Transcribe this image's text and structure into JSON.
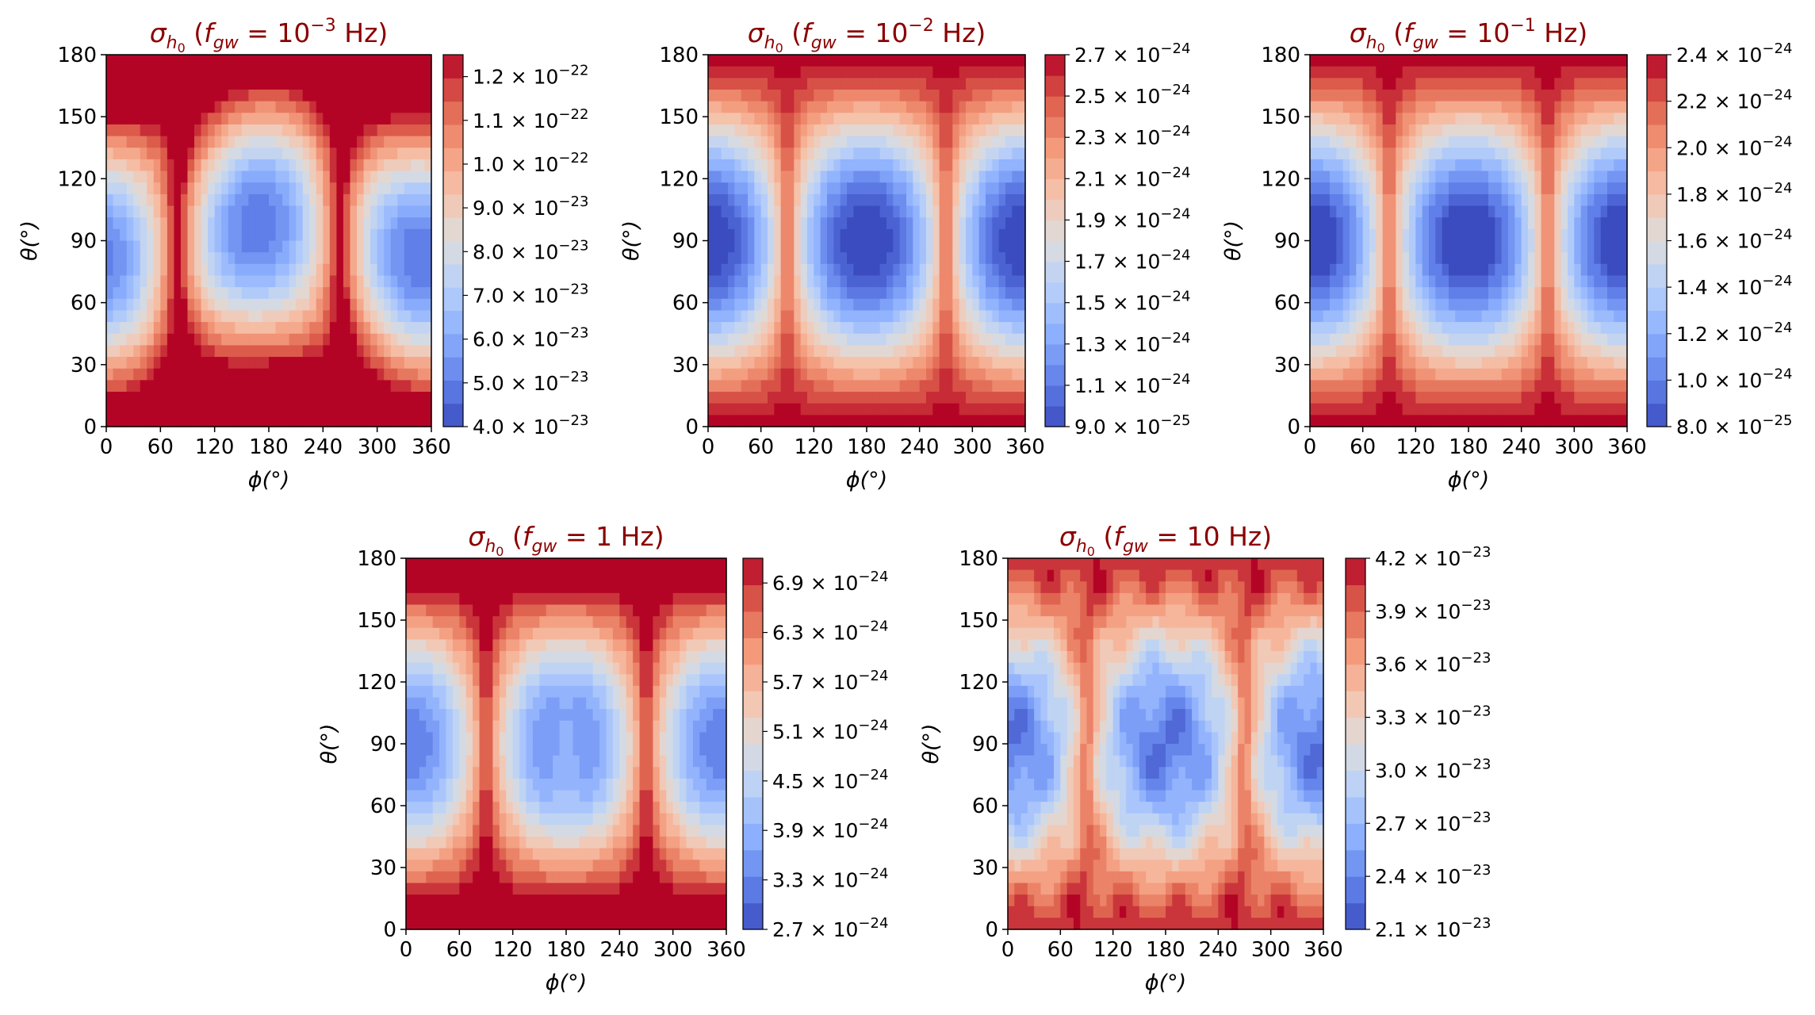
{
  "colors": {
    "title": "#8b0000",
    "colormap": "coolwarm",
    "axis": "#000000"
  },
  "chart_data": [
    {
      "type": "heatmap",
      "title": "σ_h0 (f_gw = 10^-3 Hz)",
      "title_parts": {
        "prefix": "σ",
        "sub": "h",
        "subsub": "0",
        "open": "(",
        "f": "f",
        "fsub": "gw",
        "eq": " = ",
        "value": "10",
        "exp": "−3",
        "unit": " Hz)"
      },
      "xlabel": "ϕ(°)",
      "ylabel": "θ(°)",
      "xlim": [
        0,
        360
      ],
      "ylim": [
        0,
        180
      ],
      "x_ticks": [
        "0",
        "60",
        "120",
        "180",
        "240",
        "300",
        "360"
      ],
      "y_ticks": [
        "0",
        "30",
        "60",
        "90",
        "120",
        "150",
        "180"
      ],
      "z_min": 4e-23,
      "z_max": 1.25e-22,
      "pattern": "low_freq",
      "colorbar_ticks": [
        {
          "value": 4e-23,
          "mant": "4.0",
          "exp": "−23"
        },
        {
          "value": 5e-23,
          "mant": "5.0",
          "exp": "−23"
        },
        {
          "value": 6e-23,
          "mant": "6.0",
          "exp": "−23"
        },
        {
          "value": 7e-23,
          "mant": "7.0",
          "exp": "−23"
        },
        {
          "value": 8e-23,
          "mant": "8.0",
          "exp": "−23"
        },
        {
          "value": 9e-23,
          "mant": "9.0",
          "exp": "−23"
        },
        {
          "value": 1e-22,
          "mant": "1.0",
          "exp": "−22"
        },
        {
          "value": 1.1e-22,
          "mant": "1.1",
          "exp": "−22"
        },
        {
          "value": 1.2e-22,
          "mant": "1.2",
          "exp": "−22"
        }
      ]
    },
    {
      "type": "heatmap",
      "title": "σ_h0 (f_gw = 10^-2 Hz)",
      "title_parts": {
        "prefix": "σ",
        "sub": "h",
        "subsub": "0",
        "open": "(",
        "f": "f",
        "fsub": "gw",
        "eq": " = ",
        "value": "10",
        "exp": "−2",
        "unit": " Hz)"
      },
      "xlabel": "ϕ(°)",
      "ylabel": "θ(°)",
      "xlim": [
        0,
        360
      ],
      "ylim": [
        0,
        180
      ],
      "x_ticks": [
        "0",
        "60",
        "120",
        "180",
        "240",
        "300",
        "360"
      ],
      "y_ticks": [
        "0",
        "30",
        "60",
        "90",
        "120",
        "150",
        "180"
      ],
      "z_min": 9e-25,
      "z_max": 2.7e-24,
      "pattern": "mid_freq",
      "colorbar_ticks": [
        {
          "value": 9e-25,
          "mant": "9.0",
          "exp": "−25"
        },
        {
          "value": 1.1e-24,
          "mant": "1.1",
          "exp": "−24"
        },
        {
          "value": 1.3e-24,
          "mant": "1.3",
          "exp": "−24"
        },
        {
          "value": 1.5e-24,
          "mant": "1.5",
          "exp": "−24"
        },
        {
          "value": 1.7e-24,
          "mant": "1.7",
          "exp": "−24"
        },
        {
          "value": 1.9e-24,
          "mant": "1.9",
          "exp": "−24"
        },
        {
          "value": 2.1e-24,
          "mant": "2.1",
          "exp": "−24"
        },
        {
          "value": 2.3e-24,
          "mant": "2.3",
          "exp": "−24"
        },
        {
          "value": 2.5e-24,
          "mant": "2.5",
          "exp": "−24"
        },
        {
          "value": 2.7e-24,
          "mant": "2.7",
          "exp": "−24"
        }
      ]
    },
    {
      "type": "heatmap",
      "title": "σ_h0 (f_gw = 10^-1 Hz)",
      "title_parts": {
        "prefix": "σ",
        "sub": "h",
        "subsub": "0",
        "open": "(",
        "f": "f",
        "fsub": "gw",
        "eq": " = ",
        "value": "10",
        "exp": "−1",
        "unit": " Hz)"
      },
      "xlabel": "ϕ(°)",
      "ylabel": "θ(°)",
      "xlim": [
        0,
        360
      ],
      "ylim": [
        0,
        180
      ],
      "x_ticks": [
        "0",
        "60",
        "120",
        "180",
        "240",
        "300",
        "360"
      ],
      "y_ticks": [
        "0",
        "30",
        "60",
        "90",
        "120",
        "150",
        "180"
      ],
      "z_min": 8e-25,
      "z_max": 2.4e-24,
      "pattern": "mid_freq",
      "colorbar_ticks": [
        {
          "value": 8e-25,
          "mant": "8.0",
          "exp": "−25"
        },
        {
          "value": 1e-24,
          "mant": "1.0",
          "exp": "−24"
        },
        {
          "value": 1.2e-24,
          "mant": "1.2",
          "exp": "−24"
        },
        {
          "value": 1.4e-24,
          "mant": "1.4",
          "exp": "−24"
        },
        {
          "value": 1.6e-24,
          "mant": "1.6",
          "exp": "−24"
        },
        {
          "value": 1.8e-24,
          "mant": "1.8",
          "exp": "−24"
        },
        {
          "value": 2e-24,
          "mant": "2.0",
          "exp": "−24"
        },
        {
          "value": 2.2e-24,
          "mant": "2.2",
          "exp": "−24"
        },
        {
          "value": 2.4e-24,
          "mant": "2.4",
          "exp": "−24"
        }
      ]
    },
    {
      "type": "heatmap",
      "title": "σ_h0 (f_gw = 1 Hz)",
      "title_parts": {
        "prefix": "σ",
        "sub": "h",
        "subsub": "0",
        "open": "(",
        "f": "f",
        "fsub": "gw",
        "eq": " = ",
        "value": "1",
        "exp": "",
        "unit": " Hz)"
      },
      "xlabel": "ϕ(°)",
      "ylabel": "θ(°)",
      "xlim": [
        0,
        360
      ],
      "ylim": [
        0,
        180
      ],
      "x_ticks": [
        "0",
        "60",
        "120",
        "180",
        "240",
        "300",
        "360"
      ],
      "y_ticks": [
        "0",
        "30",
        "60",
        "90",
        "120",
        "150",
        "180"
      ],
      "z_min": 2.7e-24,
      "z_max": 7.2e-24,
      "pattern": "one_hz",
      "colorbar_ticks": [
        {
          "value": 2.7e-24,
          "mant": "2.7",
          "exp": "−24"
        },
        {
          "value": 3.3e-24,
          "mant": "3.3",
          "exp": "−24"
        },
        {
          "value": 3.9e-24,
          "mant": "3.9",
          "exp": "−24"
        },
        {
          "value": 4.5e-24,
          "mant": "4.5",
          "exp": "−24"
        },
        {
          "value": 5.1e-24,
          "mant": "5.1",
          "exp": "−24"
        },
        {
          "value": 5.7e-24,
          "mant": "5.7",
          "exp": "−24"
        },
        {
          "value": 6.3e-24,
          "mant": "6.3",
          "exp": "−24"
        },
        {
          "value": 6.9e-24,
          "mant": "6.9",
          "exp": "−24"
        }
      ]
    },
    {
      "type": "heatmap",
      "title": "σ_h0 (f_gw = 10 Hz)",
      "title_parts": {
        "prefix": "σ",
        "sub": "h",
        "subsub": "0",
        "open": "(",
        "f": "f",
        "fsub": "gw",
        "eq": " = ",
        "value": "10",
        "exp": "",
        "unit": " Hz)"
      },
      "xlabel": "ϕ(°)",
      "ylabel": "θ(°)",
      "xlim": [
        0,
        360
      ],
      "ylim": [
        0,
        180
      ],
      "x_ticks": [
        "0",
        "60",
        "120",
        "180",
        "240",
        "300",
        "360"
      ],
      "y_ticks": [
        "0",
        "30",
        "60",
        "90",
        "120",
        "150",
        "180"
      ],
      "z_min": 2.1e-23,
      "z_max": 4.2e-23,
      "pattern": "high_freq",
      "colorbar_ticks": [
        {
          "value": 2.1e-23,
          "mant": "2.1",
          "exp": "−23"
        },
        {
          "value": 2.4e-23,
          "mant": "2.4",
          "exp": "−23"
        },
        {
          "value": 2.7e-23,
          "mant": "2.7",
          "exp": "−23"
        },
        {
          "value": 3e-23,
          "mant": "3.0",
          "exp": "−23"
        },
        {
          "value": 3.3e-23,
          "mant": "3.3",
          "exp": "−23"
        },
        {
          "value": 3.6e-23,
          "mant": "3.6",
          "exp": "−23"
        },
        {
          "value": 3.9e-23,
          "mant": "3.9",
          "exp": "−23"
        },
        {
          "value": 4.2e-23,
          "mant": "4.2",
          "exp": "−23"
        }
      ]
    }
  ]
}
